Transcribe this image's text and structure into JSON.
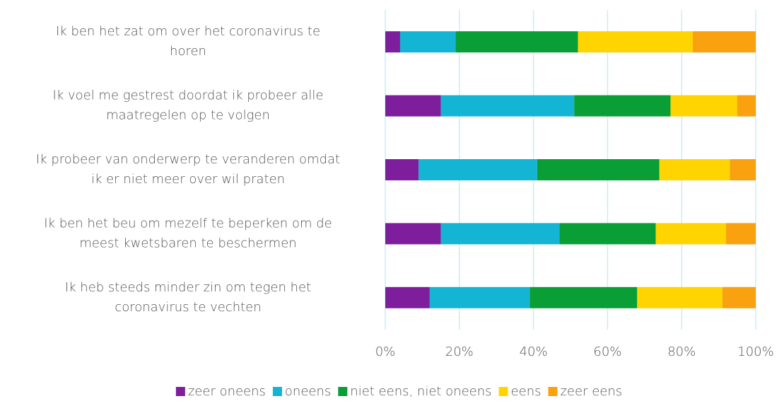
{
  "chart_data": {
    "type": "stacked-bar-horizontal",
    "categories": [
      [
        "Ik ben het zat om over het coronavirus te",
        "horen"
      ],
      [
        "Ik voel me gestrest doordat ik probeer alle",
        "maatregelen op te volgen"
      ],
      [
        "Ik probeer van onderwerp te veranderen omdat",
        "ik er niet meer over wil praten"
      ],
      [
        "Ik ben het beu om mezelf te beperken om de",
        "meest kwetsbaren te beschermen"
      ],
      [
        "Ik heb steeds minder zin om tegen het",
        "coronavirus te vechten"
      ]
    ],
    "series": [
      {
        "name": "zeer oneens",
        "color": "#7e1e9c",
        "values": [
          4,
          15,
          9,
          15,
          12
        ]
      },
      {
        "name": "oneens",
        "color": "#14b4d4",
        "values": [
          15,
          36,
          32,
          32,
          27
        ]
      },
      {
        "name": "niet eens, niet oneens",
        "color": "#0a9e37",
        "values": [
          33,
          26,
          33,
          26,
          29
        ]
      },
      {
        "name": "eens",
        "color": "#ffd400",
        "values": [
          31,
          18,
          19,
          19,
          23
        ]
      },
      {
        "name": "zeer eens",
        "color": "#f9a10f",
        "values": [
          17,
          5,
          7,
          8,
          9
        ]
      }
    ],
    "xlim": [
      0,
      100
    ],
    "xticks": [
      {
        "value": 0,
        "label": "0%"
      },
      {
        "value": 20,
        "label": "20%"
      },
      {
        "value": 40,
        "label": "40%"
      },
      {
        "value": 60,
        "label": "60%"
      },
      {
        "value": 80,
        "label": "80%"
      },
      {
        "value": 100,
        "label": "100%"
      }
    ],
    "grid": true,
    "legend": "bottom"
  }
}
